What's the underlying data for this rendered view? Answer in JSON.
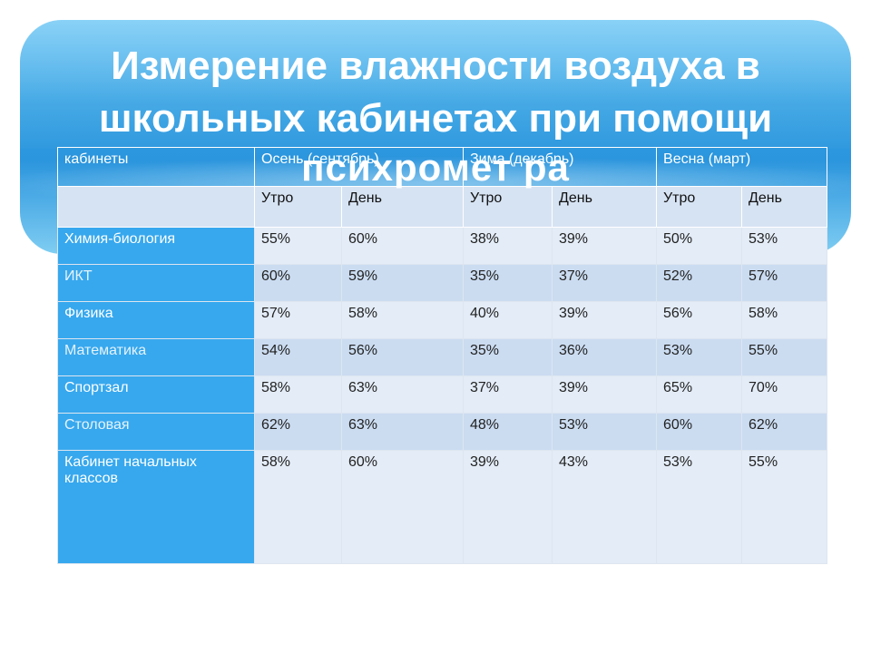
{
  "title": {
    "line1": "Измерение влажности воздуха в",
    "line2": "школьных кабинетах при помощи",
    "line3": "психромет ра"
  },
  "table": {
    "header_label": "кабинеты",
    "seasons": [
      "Осень (сентябрь)",
      "Зима (декабрь)",
      "Весна (март)"
    ],
    "subheaders": [
      "Утро",
      "День",
      "Утро",
      "День",
      "Утро",
      "День"
    ],
    "rows": [
      {
        "room": "Химия-биология",
        "values": [
          "55%",
          "60%",
          "38%",
          "39%",
          "50%",
          "53%"
        ]
      },
      {
        "room": "ИКТ",
        "values": [
          "60%",
          "59%",
          "35%",
          "37%",
          "52%",
          "57%"
        ]
      },
      {
        "room": "Физика",
        "values": [
          "57%",
          "58%",
          "40%",
          "39%",
          "56%",
          "58%"
        ]
      },
      {
        "room": "Математика",
        "values": [
          "54%",
          "56%",
          "35%",
          "36%",
          "53%",
          "55%"
        ]
      },
      {
        "room": "Спортзал",
        "values": [
          "58%",
          "63%",
          "37%",
          "39%",
          "65%",
          "70%"
        ]
      },
      {
        "room": "Столовая",
        "values": [
          "62%",
          "63%",
          "48%",
          "53%",
          "60%",
          "62%"
        ]
      },
      {
        "room": "Кабинет начальных классов",
        "values": [
          "58%",
          "60%",
          "39%",
          "43%",
          "53%",
          "55%"
        ]
      }
    ]
  },
  "colors": {
    "banner": "#2f9fe2",
    "room_column": "#37a8ee",
    "cell_light": "#e3ecf7",
    "cell_dark": "#cbdcf1"
  }
}
